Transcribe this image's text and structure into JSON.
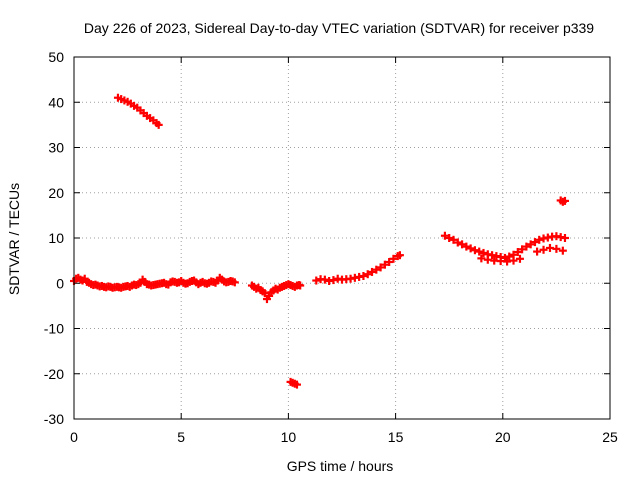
{
  "chart_data": {
    "type": "scatter",
    "title": "Day 226 of 2023, Sidereal Day-to-day VTEC variation (SDTVAR) for receiver p339",
    "xlabel": "GPS time / hours",
    "ylabel": "SDTVAR / TECUs",
    "xlim": [
      0,
      25
    ],
    "ylim": [
      -30,
      50
    ],
    "xticks": [
      0,
      5,
      10,
      15,
      20,
      25
    ],
    "yticks": [
      -30,
      -20,
      -10,
      0,
      10,
      20,
      30,
      40,
      50
    ],
    "xtick_labels": [
      "0",
      "5",
      "10",
      "15",
      "20",
      "25"
    ],
    "ytick_labels": [
      "-30",
      "-20",
      "-10",
      "0",
      "10",
      "20",
      "30",
      "40",
      "50"
    ],
    "grid": true,
    "legend": "none",
    "marker": "plus",
    "color": "#ff0000",
    "series": [
      {
        "name": "SDTVAR",
        "x": [
          0.0,
          0.1,
          0.2,
          0.3,
          0.4,
          0.5,
          0.6,
          0.7,
          0.8,
          0.9,
          1.0,
          1.1,
          1.2,
          1.3,
          1.4,
          1.5,
          1.6,
          1.7,
          1.8,
          1.9,
          2.0,
          2.1,
          2.2,
          2.3,
          2.4,
          2.5,
          2.6,
          2.7,
          2.8,
          2.9,
          3.0,
          3.1,
          3.2,
          3.3,
          3.4,
          3.5,
          3.6,
          3.7,
          3.8,
          3.9,
          4.0,
          4.1,
          4.2,
          4.3,
          4.4,
          4.5,
          4.6,
          4.7,
          4.8,
          4.9,
          5.0,
          5.1,
          5.2,
          5.3,
          5.4,
          5.5,
          5.6,
          5.7,
          5.8,
          5.9,
          6.0,
          6.1,
          6.2,
          6.3,
          6.4,
          6.5,
          6.6,
          6.7,
          6.8,
          6.9,
          7.0,
          7.1,
          7.2,
          7.3,
          7.4,
          7.5,
          2.05,
          2.2,
          2.35,
          2.5,
          2.65,
          2.8,
          2.95,
          3.1,
          3.25,
          3.4,
          3.55,
          3.7,
          3.85,
          3.95,
          8.3,
          8.4,
          8.5,
          8.6,
          8.7,
          8.8,
          8.9,
          9.0,
          9.1,
          9.2,
          9.3,
          9.4,
          9.5,
          9.6,
          9.7,
          9.8,
          9.9,
          10.0,
          10.1,
          10.2,
          10.3,
          10.4,
          10.5,
          10.55,
          10.1,
          10.2,
          10.3,
          10.4,
          11.3,
          11.5,
          11.7,
          11.9,
          12.1,
          12.3,
          12.5,
          12.7,
          12.9,
          13.1,
          13.3,
          13.5,
          13.7,
          13.9,
          14.1,
          14.3,
          14.5,
          14.7,
          14.9,
          15.1,
          15.2,
          17.3,
          17.5,
          17.7,
          17.9,
          18.1,
          18.3,
          18.5,
          18.7,
          18.9,
          19.1,
          19.3,
          19.5,
          19.7,
          19.9,
          20.1,
          20.3,
          20.5,
          20.7,
          20.9,
          21.1,
          21.3,
          21.5,
          21.7,
          21.9,
          22.1,
          22.3,
          22.5,
          22.7,
          22.9,
          19.0,
          19.3,
          19.6,
          19.9,
          20.2,
          20.5,
          20.8,
          21.6,
          21.9,
          22.2,
          22.5,
          22.8,
          22.7,
          22.8,
          22.9
        ],
        "y": [
          0.5,
          1.0,
          1.2,
          0.8,
          0.6,
          1.0,
          0.3,
          0.1,
          -0.2,
          -0.4,
          -0.3,
          -0.5,
          -0.7,
          -0.6,
          -0.8,
          -0.9,
          -0.7,
          -0.8,
          -1.0,
          -0.9,
          -0.8,
          -0.9,
          -1.0,
          -0.8,
          -0.7,
          -0.6,
          -0.8,
          -0.5,
          -0.3,
          -0.4,
          -0.2,
          0.1,
          0.8,
          0.3,
          -0.2,
          -0.3,
          -0.5,
          -0.4,
          -0.3,
          -0.2,
          -0.1,
          0.0,
          0.1,
          -0.2,
          -0.3,
          0.2,
          0.4,
          0.3,
          0.1,
          0.2,
          0.5,
          0.1,
          -0.1,
          0.0,
          0.3,
          0.5,
          0.6,
          0.2,
          -0.2,
          0.1,
          0.3,
          0.0,
          -0.1,
          0.1,
          0.4,
          0.3,
          0.1,
          0.6,
          1.2,
          0.8,
          0.4,
          0.2,
          0.3,
          0.5,
          0.4,
          0.2,
          41.0,
          40.7,
          40.4,
          40.1,
          39.7,
          39.2,
          38.8,
          38.2,
          37.6,
          37.0,
          36.5,
          36.0,
          35.4,
          35.0,
          -0.5,
          -0.8,
          -1.2,
          -1.0,
          -1.5,
          -1.8,
          -2.2,
          -3.5,
          -2.8,
          -2.0,
          -1.6,
          -1.2,
          -1.4,
          -1.0,
          -0.8,
          -0.6,
          -0.4,
          -0.2,
          -0.4,
          -0.6,
          -0.8,
          -0.5,
          -0.4,
          -0.5,
          -21.8,
          -22.0,
          -22.2,
          -22.4,
          0.6,
          0.9,
          0.8,
          0.5,
          0.7,
          1.0,
          0.8,
          0.9,
          1.0,
          1.2,
          1.4,
          1.6,
          2.0,
          2.5,
          3.0,
          3.5,
          4.1,
          4.7,
          5.4,
          6.0,
          6.2,
          10.5,
          10.0,
          9.6,
          9.0,
          8.6,
          8.1,
          7.7,
          7.3,
          7.0,
          6.7,
          6.4,
          6.2,
          6.0,
          5.8,
          5.6,
          5.9,
          6.3,
          6.9,
          7.5,
          8.1,
          8.6,
          9.1,
          9.6,
          9.9,
          10.1,
          10.3,
          10.4,
          10.2,
          10.0,
          5.5,
          5.2,
          5.0,
          4.9,
          4.8,
          5.0,
          5.4,
          7.0,
          7.4,
          7.8,
          7.6,
          7.2,
          18.3,
          18.0,
          18.2
        ]
      }
    ]
  }
}
